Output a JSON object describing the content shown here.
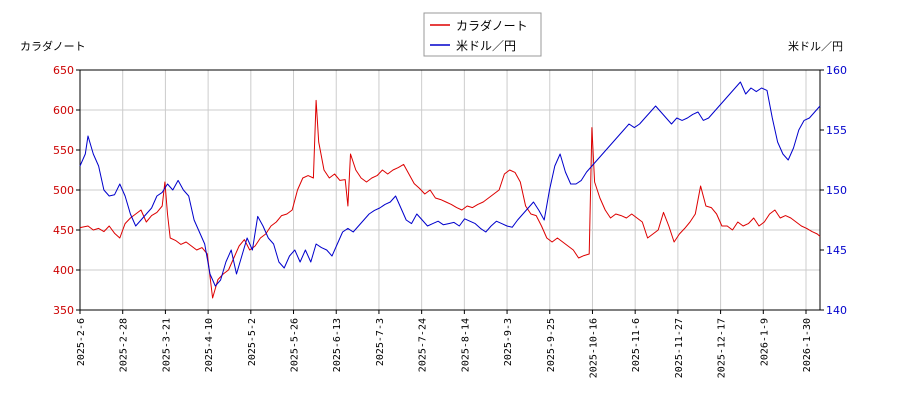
{
  "chart_data": {
    "type": "line",
    "legend_position": "top-center",
    "grid": true,
    "left_axis_label": "カラダノート",
    "right_axis_label": "米ドル／円",
    "left_ylim": [
      350,
      650
    ],
    "right_ylim": [
      140,
      160
    ],
    "left_ticks": [
      "350",
      "400",
      "450",
      "500",
      "550",
      "600",
      "650"
    ],
    "right_ticks": [
      "140",
      "145",
      "150",
      "155",
      "160"
    ],
    "x_ticks": [
      "2025-2-6",
      "2025-2-28",
      "2025-3-21",
      "2025-4-10",
      "2025-5-2",
      "2025-5-26",
      "2025-6-13",
      "2025-7-3",
      "2025-7-24",
      "2025-8-14",
      "2025-9-3",
      "2025-9-25",
      "2025-10-16",
      "2025-11-6",
      "2025-11-27",
      "2025-12-17",
      "2026-1-9",
      "2026-1-30"
    ],
    "colors": {
      "stock": "#dd0000",
      "fx": "#0000cc"
    },
    "series": [
      {
        "name": "カラダノート",
        "axis": "left",
        "values": [
          [
            0,
            453
          ],
          [
            3,
            455
          ],
          [
            5,
            450
          ],
          [
            7,
            452
          ],
          [
            9,
            448
          ],
          [
            11,
            455
          ],
          [
            13,
            446
          ],
          [
            15,
            440
          ],
          [
            17,
            458
          ],
          [
            19,
            465
          ],
          [
            21,
            470
          ],
          [
            23,
            475
          ],
          [
            25,
            460
          ],
          [
            27,
            468
          ],
          [
            29,
            472
          ],
          [
            31,
            480
          ],
          [
            32,
            510
          ],
          [
            33,
            470
          ],
          [
            34,
            440
          ],
          [
            36,
            437
          ],
          [
            38,
            432
          ],
          [
            40,
            435
          ],
          [
            42,
            430
          ],
          [
            44,
            425
          ],
          [
            46,
            428
          ],
          [
            48,
            420
          ],
          [
            50,
            365
          ],
          [
            52,
            388
          ],
          [
            54,
            395
          ],
          [
            56,
            400
          ],
          [
            58,
            415
          ],
          [
            60,
            430
          ],
          [
            62,
            438
          ],
          [
            64,
            425
          ],
          [
            66,
            430
          ],
          [
            68,
            440
          ],
          [
            70,
            445
          ],
          [
            72,
            455
          ],
          [
            74,
            460
          ],
          [
            76,
            468
          ],
          [
            78,
            470
          ],
          [
            80,
            475
          ],
          [
            82,
            500
          ],
          [
            84,
            515
          ],
          [
            86,
            518
          ],
          [
            88,
            515
          ],
          [
            89,
            612
          ],
          [
            90,
            560
          ],
          [
            92,
            525
          ],
          [
            94,
            515
          ],
          [
            96,
            520
          ],
          [
            98,
            512
          ],
          [
            100,
            513
          ],
          [
            101,
            480
          ],
          [
            102,
            545
          ],
          [
            104,
            525
          ],
          [
            106,
            515
          ],
          [
            108,
            510
          ],
          [
            110,
            515
          ],
          [
            112,
            518
          ],
          [
            114,
            525
          ],
          [
            116,
            520
          ],
          [
            118,
            525
          ],
          [
            120,
            528
          ],
          [
            122,
            532
          ],
          [
            124,
            520
          ],
          [
            126,
            508
          ],
          [
            128,
            502
          ],
          [
            130,
            495
          ],
          [
            132,
            500
          ],
          [
            134,
            490
          ],
          [
            136,
            488
          ],
          [
            138,
            485
          ],
          [
            140,
            482
          ],
          [
            142,
            478
          ],
          [
            144,
            475
          ],
          [
            146,
            480
          ],
          [
            148,
            478
          ],
          [
            150,
            482
          ],
          [
            152,
            485
          ],
          [
            154,
            490
          ],
          [
            156,
            495
          ],
          [
            158,
            500
          ],
          [
            160,
            520
          ],
          [
            162,
            525
          ],
          [
            164,
            522
          ],
          [
            166,
            510
          ],
          [
            168,
            480
          ],
          [
            170,
            470
          ],
          [
            172,
            468
          ],
          [
            174,
            455
          ],
          [
            176,
            440
          ],
          [
            178,
            435
          ],
          [
            180,
            440
          ],
          [
            182,
            435
          ],
          [
            184,
            430
          ],
          [
            186,
            425
          ],
          [
            188,
            415
          ],
          [
            190,
            418
          ],
          [
            192,
            420
          ],
          [
            193,
            578
          ],
          [
            194,
            510
          ],
          [
            196,
            490
          ],
          [
            198,
            475
          ],
          [
            200,
            465
          ],
          [
            202,
            470
          ],
          [
            204,
            468
          ],
          [
            206,
            465
          ],
          [
            208,
            470
          ],
          [
            210,
            465
          ],
          [
            212,
            460
          ],
          [
            214,
            440
          ],
          [
            216,
            445
          ],
          [
            218,
            450
          ],
          [
            220,
            472
          ],
          [
            222,
            455
          ],
          [
            224,
            435
          ],
          [
            226,
            445
          ],
          [
            228,
            452
          ],
          [
            230,
            460
          ],
          [
            232,
            470
          ],
          [
            234,
            505
          ],
          [
            236,
            480
          ],
          [
            238,
            478
          ],
          [
            240,
            470
          ],
          [
            242,
            455
          ],
          [
            244,
            455
          ],
          [
            246,
            450
          ],
          [
            248,
            460
          ],
          [
            250,
            455
          ],
          [
            252,
            458
          ],
          [
            254,
            465
          ],
          [
            256,
            455
          ],
          [
            258,
            460
          ],
          [
            260,
            470
          ],
          [
            262,
            475
          ],
          [
            264,
            465
          ],
          [
            266,
            468
          ],
          [
            268,
            465
          ],
          [
            270,
            460
          ],
          [
            272,
            455
          ],
          [
            274,
            452
          ],
          [
            276,
            448
          ],
          [
            278,
            445
          ],
          [
            279,
            442
          ]
        ]
      },
      {
        "name": "米ドル／円",
        "axis": "right",
        "values": [
          [
            0,
            152
          ],
          [
            2,
            153
          ],
          [
            3,
            154.5
          ],
          [
            5,
            153
          ],
          [
            7,
            152
          ],
          [
            9,
            150
          ],
          [
            11,
            149.5
          ],
          [
            13,
            149.6
          ],
          [
            15,
            150.5
          ],
          [
            17,
            149.5
          ],
          [
            19,
            148
          ],
          [
            21,
            147
          ],
          [
            23,
            147.5
          ],
          [
            25,
            148
          ],
          [
            27,
            148.5
          ],
          [
            29,
            149.5
          ],
          [
            31,
            149.8
          ],
          [
            33,
            150.5
          ],
          [
            35,
            150
          ],
          [
            37,
            150.8
          ],
          [
            39,
            150
          ],
          [
            41,
            149.5
          ],
          [
            43,
            147.5
          ],
          [
            45,
            146.5
          ],
          [
            47,
            145.5
          ],
          [
            49,
            143
          ],
          [
            51,
            142
          ],
          [
            53,
            142.5
          ],
          [
            55,
            144
          ],
          [
            57,
            145
          ],
          [
            59,
            143
          ],
          [
            61,
            144.5
          ],
          [
            63,
            146
          ],
          [
            65,
            145
          ],
          [
            67,
            147.8
          ],
          [
            69,
            147
          ],
          [
            71,
            146
          ],
          [
            73,
            145.5
          ],
          [
            75,
            144
          ],
          [
            77,
            143.5
          ],
          [
            79,
            144.5
          ],
          [
            81,
            145
          ],
          [
            83,
            144
          ],
          [
            85,
            145
          ],
          [
            87,
            144
          ],
          [
            89,
            145.5
          ],
          [
            91,
            145.2
          ],
          [
            93,
            145
          ],
          [
            95,
            144.5
          ],
          [
            97,
            145.5
          ],
          [
            99,
            146.5
          ],
          [
            101,
            146.8
          ],
          [
            103,
            146.5
          ],
          [
            105,
            147
          ],
          [
            107,
            147.5
          ],
          [
            109,
            148
          ],
          [
            111,
            148.3
          ],
          [
            113,
            148.5
          ],
          [
            115,
            148.8
          ],
          [
            117,
            149
          ],
          [
            119,
            149.5
          ],
          [
            121,
            148.5
          ],
          [
            123,
            147.5
          ],
          [
            125,
            147.2
          ],
          [
            127,
            148
          ],
          [
            129,
            147.5
          ],
          [
            131,
            147
          ],
          [
            133,
            147.2
          ],
          [
            135,
            147.4
          ],
          [
            137,
            147.1
          ],
          [
            139,
            147.2
          ],
          [
            141,
            147.3
          ],
          [
            143,
            147
          ],
          [
            145,
            147.6
          ],
          [
            147,
            147.4
          ],
          [
            149,
            147.2
          ],
          [
            151,
            146.8
          ],
          [
            153,
            146.5
          ],
          [
            155,
            147
          ],
          [
            157,
            147.4
          ],
          [
            159,
            147.2
          ],
          [
            161,
            147
          ],
          [
            163,
            146.9
          ],
          [
            165,
            147.5
          ],
          [
            167,
            148
          ],
          [
            169,
            148.5
          ],
          [
            171,
            149
          ],
          [
            173,
            148.3
          ],
          [
            175,
            147.5
          ],
          [
            177,
            150
          ],
          [
            179,
            152
          ],
          [
            181,
            153
          ],
          [
            183,
            151.5
          ],
          [
            185,
            150.5
          ],
          [
            187,
            150.5
          ],
          [
            189,
            150.8
          ],
          [
            191,
            151.5
          ],
          [
            193,
            152
          ],
          [
            195,
            152.5
          ],
          [
            197,
            153
          ],
          [
            199,
            153.5
          ],
          [
            201,
            154
          ],
          [
            203,
            154.5
          ],
          [
            205,
            155
          ],
          [
            207,
            155.5
          ],
          [
            209,
            155.2
          ],
          [
            211,
            155.5
          ],
          [
            213,
            156
          ],
          [
            215,
            156.5
          ],
          [
            217,
            157
          ],
          [
            219,
            156.5
          ],
          [
            221,
            156
          ],
          [
            223,
            155.5
          ],
          [
            225,
            156
          ],
          [
            227,
            155.8
          ],
          [
            229,
            156
          ],
          [
            231,
            156.3
          ],
          [
            233,
            156.5
          ],
          [
            235,
            155.8
          ],
          [
            237,
            156
          ],
          [
            239,
            156.5
          ],
          [
            241,
            157
          ],
          [
            243,
            157.5
          ],
          [
            245,
            158
          ],
          [
            247,
            158.5
          ],
          [
            249,
            159
          ],
          [
            251,
            158
          ],
          [
            253,
            158.5
          ],
          [
            255,
            158.2
          ],
          [
            257,
            158.5
          ],
          [
            259,
            158.3
          ],
          [
            261,
            156
          ],
          [
            263,
            154
          ],
          [
            265,
            153
          ],
          [
            267,
            152.5
          ],
          [
            269,
            153.5
          ],
          [
            271,
            155
          ],
          [
            273,
            155.8
          ],
          [
            275,
            156
          ],
          [
            277,
            156.5
          ],
          [
            279,
            157
          ]
        ]
      }
    ]
  },
  "legend": {
    "items": [
      {
        "label": "カラダノート",
        "color": "#dd0000"
      },
      {
        "label": "米ドル／円",
        "color": "#0000cc"
      }
    ]
  }
}
